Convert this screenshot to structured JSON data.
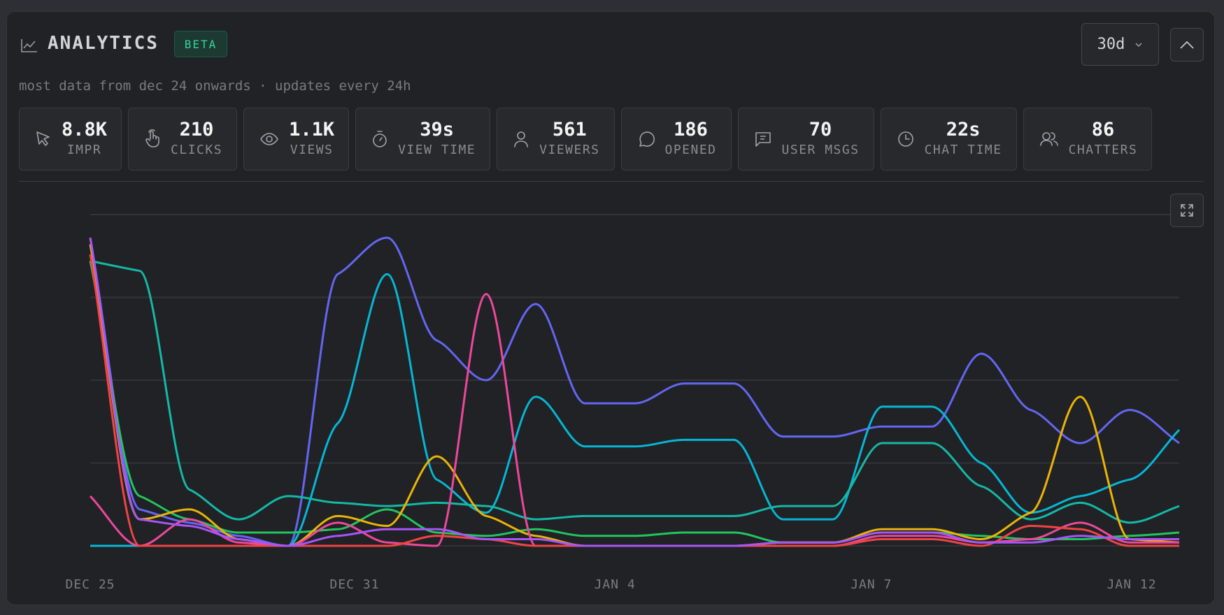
{
  "header": {
    "title": "ANALYTICS",
    "badge": "BETA",
    "range_select": {
      "value": "30d"
    },
    "subtitle": "most data from dec 24 onwards · updates every 24h"
  },
  "stats": [
    {
      "icon": "cursor-icon",
      "value": "8.8K",
      "label": "IMPR"
    },
    {
      "icon": "hand-pointer-icon",
      "value": "210",
      "label": "CLICKS"
    },
    {
      "icon": "eye-icon",
      "value": "1.1K",
      "label": "VIEWS"
    },
    {
      "icon": "stopwatch-icon",
      "value": "39s",
      "label": "VIEW TIME"
    },
    {
      "icon": "user-icon",
      "value": "561",
      "label": "VIEWERS"
    },
    {
      "icon": "message-circle-icon",
      "value": "186",
      "label": "OPENED"
    },
    {
      "icon": "message-square-text-icon",
      "value": "70",
      "label": "USER MSGS"
    },
    {
      "icon": "clock-icon",
      "value": "22s",
      "label": "CHAT TIME"
    },
    {
      "icon": "users-icon",
      "value": "86",
      "label": "CHATTERS"
    }
  ],
  "colors": {
    "accent": "#34d399",
    "grid": "#2f3035"
  },
  "chart_data": {
    "type": "line",
    "curve": "smooth",
    "grid": true,
    "y_axis_labels_shown": false,
    "ylim": [
      0,
      100
    ],
    "x_ticks": [
      "DEC 25",
      "DEC 31",
      "JAN 4",
      "JAN 7",
      "JAN 12"
    ],
    "series": [
      {
        "color": "#6366f1",
        "values": [
          93,
          11,
          7,
          3,
          0,
          82,
          93,
          62,
          50,
          73,
          43,
          43,
          49,
          49,
          33,
          33,
          36,
          36,
          58,
          41,
          31,
          41,
          31
        ]
      },
      {
        "color": "#06b6d4",
        "values": [
          0,
          0,
          0,
          0,
          0,
          37,
          82,
          20,
          10,
          45,
          30,
          30,
          32,
          32,
          8,
          8,
          42,
          42,
          25,
          10,
          15,
          20,
          35
        ]
      },
      {
        "color": "#14b8a6",
        "values": [
          86,
          83,
          17,
          8,
          15,
          13,
          12,
          13,
          12,
          8,
          9,
          9,
          9,
          9,
          12,
          12,
          31,
          31,
          18,
          8,
          13,
          7,
          12
        ]
      },
      {
        "color": "#22c55e",
        "values": [
          86,
          15,
          8,
          4,
          4,
          5,
          11,
          4,
          3,
          5,
          3,
          3,
          4,
          4,
          1,
          1,
          4,
          4,
          3,
          2,
          2,
          3,
          4
        ]
      },
      {
        "color": "#eab308",
        "values": [
          91,
          8,
          11,
          2,
          0,
          9,
          6,
          27,
          9,
          3,
          0,
          0,
          0,
          0,
          1,
          1,
          5,
          5,
          2,
          10,
          45,
          2,
          1
        ]
      },
      {
        "color": "#ec4899",
        "values": [
          15,
          0,
          8,
          1,
          0,
          7,
          1,
          0,
          76,
          0,
          0,
          0,
          0,
          0,
          0,
          0,
          3,
          3,
          1,
          2,
          7,
          1,
          1
        ]
      },
      {
        "color": "#ef4444",
        "values": [
          88,
          0,
          0,
          0,
          0,
          0,
          0,
          3,
          2,
          0,
          0,
          0,
          0,
          0,
          0,
          0,
          2,
          2,
          0,
          6,
          5,
          0,
          0
        ]
      },
      {
        "color": "#a855f7",
        "values": [
          93,
          8,
          6,
          2,
          0,
          3,
          5,
          5,
          2,
          2,
          0,
          0,
          0,
          0,
          1,
          1,
          4,
          4,
          1,
          1,
          3,
          2,
          2
        ]
      }
    ]
  }
}
